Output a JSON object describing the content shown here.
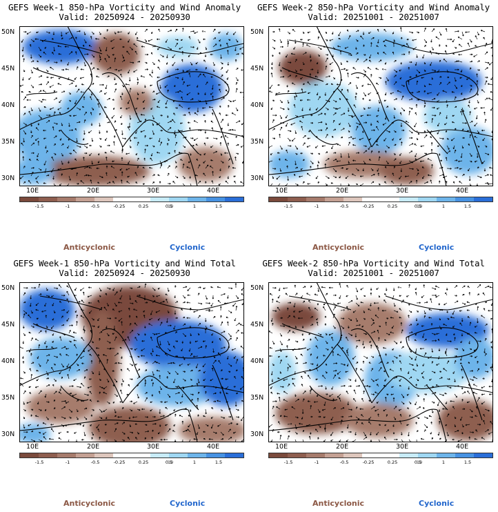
{
  "panels": [
    {
      "id": "p1",
      "title1": "GEFS Week-1 850-hPa Vorticity and Wind Anomaly",
      "title2": "Valid: 20250924 - 20250930"
    },
    {
      "id": "p2",
      "title1": "GEFS Week-2 850-hPa Vorticity and Wind Anomaly",
      "title2": "Valid: 20251001 - 20251007"
    },
    {
      "id": "p3",
      "title1": "GEFS Week-1 850-hPa Vorticity and Wind Total",
      "title2": "Valid: 20250924 - 20250930"
    },
    {
      "id": "p4",
      "title1": "GEFS Week-2 850-hPa Vorticity and Wind Total",
      "title2": "Valid: 20251001 - 20251007"
    }
  ],
  "axes": {
    "lat_labels": [
      "50N",
      "45N",
      "40N",
      "35N",
      "30N"
    ],
    "lon_labels": [
      "10E",
      "20E",
      "30E",
      "40E"
    ]
  },
  "colorbar": {
    "ticks": [
      "-1.5",
      "-1",
      "-0.5",
      "-0.25",
      "0.25",
      "0.5",
      "1",
      "1.5"
    ],
    "unit_label": "10",
    "colors": [
      "#7a4a3c",
      "#8e5e4f",
      "#a67b6c",
      "#c4a093",
      "#ddc6bc",
      "#ffffff",
      "#ffffff",
      "#c8ecf8",
      "#9fd7f2",
      "#6db4ea",
      "#4792e2",
      "#2a6ed8"
    ]
  },
  "legend": {
    "anticyclonic": "Anticyclonic",
    "cyclonic": "Cyclonic"
  },
  "colors": {
    "anticyclonic": "#8b5744",
    "cyclonic": "#2266cc"
  }
}
